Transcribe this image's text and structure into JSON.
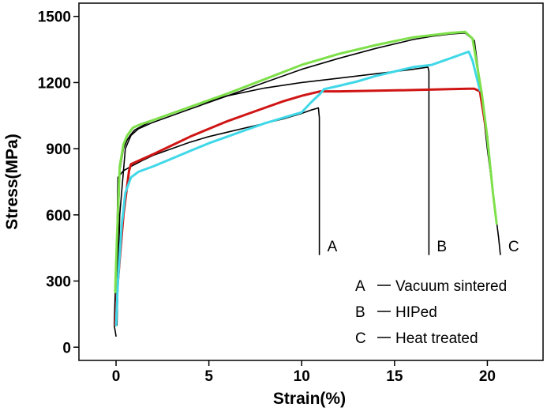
{
  "chart_data": {
    "type": "line",
    "xlabel": "Strain(%)",
    "ylabel": "Stress(MPa)",
    "xlim": [
      -2,
      23
    ],
    "ylim": [
      -60,
      1560
    ],
    "x_ticks": [
      0,
      5,
      10,
      15,
      20
    ],
    "y_ticks": [
      0,
      300,
      600,
      900,
      1200,
      1500
    ],
    "grid": false,
    "legend_position": "bottom-right",
    "legend": [
      {
        "letter": "A",
        "label": "Vacuum sintered"
      },
      {
        "letter": "B",
        "label": "HIPed"
      },
      {
        "letter": "C",
        "label": "Heat treated"
      }
    ],
    "series": [
      {
        "color": "#000000",
        "end_label": "A",
        "x": [
          0,
          -0.1,
          0.05,
          0.1,
          0.2,
          0.4,
          0.6,
          0.8,
          1,
          1.5,
          2,
          3,
          4,
          5,
          6,
          7,
          8,
          9,
          10,
          10.5,
          10.9,
          10.95,
          10.95
        ],
        "y": [
          50,
          100,
          500,
          770,
          780,
          800,
          810,
          820,
          828,
          850,
          870,
          900,
          930,
          955,
          975,
          995,
          1015,
          1035,
          1060,
          1075,
          1085,
          1040,
          420
        ]
      },
      {
        "color": "#000000",
        "end_label": "B",
        "x": [
          0.05,
          0.1,
          0.2,
          0.4,
          0.6,
          0.8,
          1,
          2,
          4,
          6,
          8,
          10,
          12,
          14,
          16,
          16.8,
          16.85,
          16.85
        ],
        "y": [
          150,
          500,
          800,
          900,
          940,
          965,
          985,
          1030,
          1090,
          1140,
          1175,
          1200,
          1220,
          1240,
          1260,
          1270,
          1250,
          420
        ]
      },
      {
        "color": "#000000",
        "end_label": "C",
        "x": [
          0.05,
          0.2,
          0.5,
          0.8,
          1.2,
          2,
          4,
          6,
          8,
          10,
          12,
          14,
          16,
          17,
          18,
          18.8,
          19.3,
          19.6,
          20,
          20.3,
          20.6,
          20.7
        ],
        "y": [
          100,
          600,
          900,
          960,
          990,
          1020,
          1080,
          1140,
          1200,
          1260,
          1310,
          1355,
          1395,
          1410,
          1420,
          1425,
          1390,
          1200,
          900,
          700,
          500,
          420
        ]
      },
      {
        "color": "#d01515",
        "x": [
          -0.05,
          0.1,
          0.4,
          0.7,
          0.8,
          1.2,
          2,
          3,
          4,
          5,
          6,
          7,
          8,
          9,
          10,
          11,
          12,
          14,
          16,
          18,
          19,
          19.3,
          19.6,
          20
        ],
        "y": [
          100,
          300,
          600,
          800,
          830,
          845,
          875,
          915,
          955,
          990,
          1025,
          1055,
          1085,
          1115,
          1140,
          1160,
          1160,
          1163,
          1166,
          1170,
          1172,
          1172,
          1160,
          950
        ]
      },
      {
        "color": "#40d8e8",
        "x": [
          0,
          0.1,
          0.3,
          0.5,
          0.8,
          1.2,
          2,
          3,
          4,
          5,
          6,
          7,
          8,
          9,
          10,
          10.5,
          11,
          11.2,
          12,
          13,
          14,
          15,
          16,
          17,
          18,
          19,
          19.2,
          19.6
        ],
        "y": [
          100,
          300,
          550,
          700,
          770,
          795,
          820,
          855,
          890,
          925,
          955,
          985,
          1015,
          1040,
          1065,
          1110,
          1150,
          1170,
          1185,
          1205,
          1230,
          1250,
          1270,
          1280,
          1310,
          1340,
          1300,
          1165
        ]
      },
      {
        "color": "#7ee04a",
        "x": [
          -0.05,
          0.05,
          0.2,
          0.4,
          0.6,
          0.9,
          1.3,
          2,
          3,
          4,
          6,
          8,
          10,
          12,
          14,
          16,
          17,
          18,
          18.8,
          19.2,
          19.5,
          19.7,
          20,
          20.3,
          20.5
        ],
        "y": [
          250,
          500,
          820,
          920,
          960,
          995,
          1010,
          1030,
          1060,
          1090,
          1150,
          1215,
          1280,
          1330,
          1370,
          1405,
          1415,
          1425,
          1430,
          1400,
          1250,
          1150,
          950,
          700,
          560
        ]
      }
    ]
  }
}
